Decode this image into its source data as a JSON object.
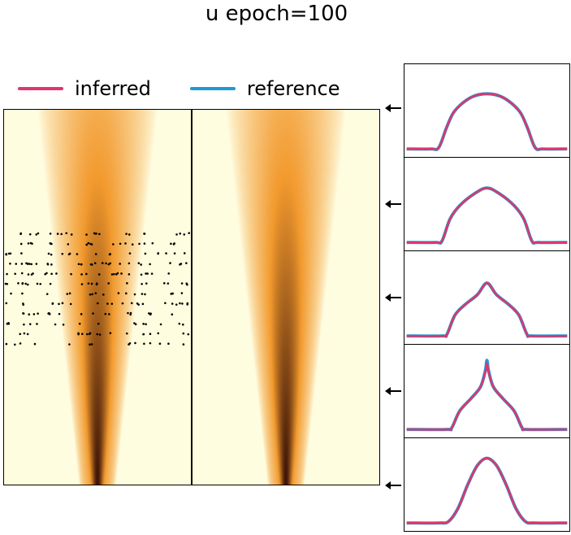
{
  "title": "u epoch=100",
  "legend": {
    "inferred": "inferred",
    "reference": "reference"
  },
  "colors": {
    "inferred": "#e0356b",
    "reference": "#1c9ad6",
    "heat_low": "#fffde0",
    "heat_mid": "#f29a2e",
    "heat_high": "#3a1206",
    "dot": "#000000"
  },
  "chart_data": [
    {
      "type": "heatmap",
      "name": "inferred field",
      "description_values": "2D field u(x,t): narrow sharp peak at bottom (t=0) spreading and flattening toward top",
      "x_range": [
        0,
        1
      ],
      "t_range": [
        0,
        1
      ],
      "has_observation_points": true
    },
    {
      "type": "heatmap",
      "name": "reference field",
      "x_range": [
        0,
        1
      ],
      "t_range": [
        0,
        1
      ],
      "has_observation_points": false
    },
    {
      "type": "line",
      "panel": 1,
      "x": [
        0.0,
        0.15,
        0.2,
        0.25,
        0.3,
        0.4,
        0.5,
        0.6,
        0.7,
        0.75,
        0.8,
        0.85,
        1.0
      ],
      "series": [
        {
          "name": "inferred",
          "values": [
            0.0,
            0.0,
            0.02,
            0.3,
            0.52,
            0.7,
            0.75,
            0.7,
            0.52,
            0.3,
            0.02,
            0.0,
            0.0
          ]
        },
        {
          "name": "reference",
          "values": [
            0.0,
            0.0,
            0.02,
            0.3,
            0.52,
            0.7,
            0.75,
            0.7,
            0.52,
            0.3,
            0.02,
            0.0,
            0.0
          ]
        }
      ]
    },
    {
      "type": "line",
      "panel": 2,
      "x": [
        0.0,
        0.18,
        0.22,
        0.27,
        0.33,
        0.42,
        0.5,
        0.58,
        0.67,
        0.73,
        0.78,
        0.82,
        1.0
      ],
      "series": [
        {
          "name": "inferred",
          "values": [
            0.0,
            0.0,
            0.02,
            0.32,
            0.5,
            0.66,
            0.74,
            0.66,
            0.5,
            0.32,
            0.02,
            0.0,
            0.0
          ]
        },
        {
          "name": "reference",
          "values": [
            0.0,
            0.0,
            0.02,
            0.32,
            0.5,
            0.66,
            0.74,
            0.66,
            0.5,
            0.32,
            0.02,
            0.0,
            0.0
          ]
        }
      ]
    },
    {
      "type": "line",
      "panel": 3,
      "x": [
        0.0,
        0.22,
        0.25,
        0.3,
        0.36,
        0.44,
        0.5,
        0.56,
        0.64,
        0.7,
        0.75,
        0.78,
        1.0
      ],
      "series": [
        {
          "name": "inferred",
          "values": [
            0.0,
            0.0,
            0.02,
            0.28,
            0.42,
            0.56,
            0.72,
            0.56,
            0.42,
            0.28,
            0.02,
            0.0,
            0.0
          ]
        },
        {
          "name": "reference",
          "values": [
            0.0,
            0.0,
            0.02,
            0.28,
            0.42,
            0.56,
            0.72,
            0.56,
            0.42,
            0.28,
            0.02,
            0.0,
            0.0
          ]
        }
      ]
    },
    {
      "type": "line",
      "panel": 4,
      "x": [
        0.0,
        0.25,
        0.28,
        0.33,
        0.4,
        0.46,
        0.49,
        0.5,
        0.51,
        0.54,
        0.6,
        0.67,
        0.72,
        0.75,
        1.0
      ],
      "series": [
        {
          "name": "inferred",
          "values": [
            0.0,
            0.0,
            0.02,
            0.25,
            0.42,
            0.58,
            0.78,
            0.9,
            0.78,
            0.58,
            0.42,
            0.25,
            0.02,
            0.0,
            0.0
          ]
        },
        {
          "name": "reference",
          "values": [
            0.0,
            0.0,
            0.02,
            0.25,
            0.42,
            0.58,
            0.8,
            0.94,
            0.8,
            0.58,
            0.42,
            0.25,
            0.02,
            0.0,
            0.0
          ]
        }
      ]
    },
    {
      "type": "line",
      "panel": 5,
      "x": [
        0.0,
        0.2,
        0.26,
        0.32,
        0.38,
        0.44,
        0.5,
        0.56,
        0.62,
        0.68,
        0.74,
        0.8,
        1.0
      ],
      "series": [
        {
          "name": "inferred",
          "values": [
            0.0,
            0.0,
            0.02,
            0.2,
            0.52,
            0.78,
            0.88,
            0.78,
            0.52,
            0.2,
            0.02,
            0.0,
            0.0
          ]
        },
        {
          "name": "reference",
          "values": [
            0.0,
            0.0,
            0.02,
            0.2,
            0.52,
            0.78,
            0.88,
            0.78,
            0.52,
            0.2,
            0.02,
            0.0,
            0.0
          ]
        }
      ]
    }
  ]
}
